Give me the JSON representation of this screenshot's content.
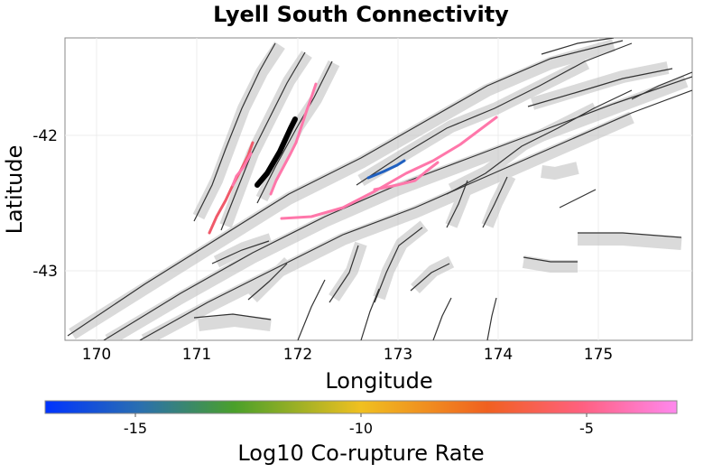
{
  "map": {
    "title": "Lyell South Connectivity",
    "xlabel": "Longitude",
    "ylabel": "Latitude",
    "x_ticks": [
      "170",
      "171",
      "172",
      "173",
      "174",
      "175"
    ],
    "y_ticks": [
      "-42",
      "-43"
    ],
    "grid": true
  },
  "colorbar": {
    "label": "Log10 Co-rupture Rate",
    "ticks": [
      "-15",
      "-10",
      "-5"
    ],
    "range": [
      -17,
      -2
    ],
    "colors": [
      "#0033ff",
      "#2a6fb0",
      "#4aa02a",
      "#f0c020",
      "#f06020",
      "#ff6080",
      "#ff88ee"
    ]
  },
  "colors": {
    "fault_trace": "#333333",
    "fault_surface": "#bbbbbb",
    "selected_fault": "#000000",
    "high_rate": "#ff77aa",
    "medium_rate": "#f05a6a",
    "low_rate": "#2060c0"
  }
}
